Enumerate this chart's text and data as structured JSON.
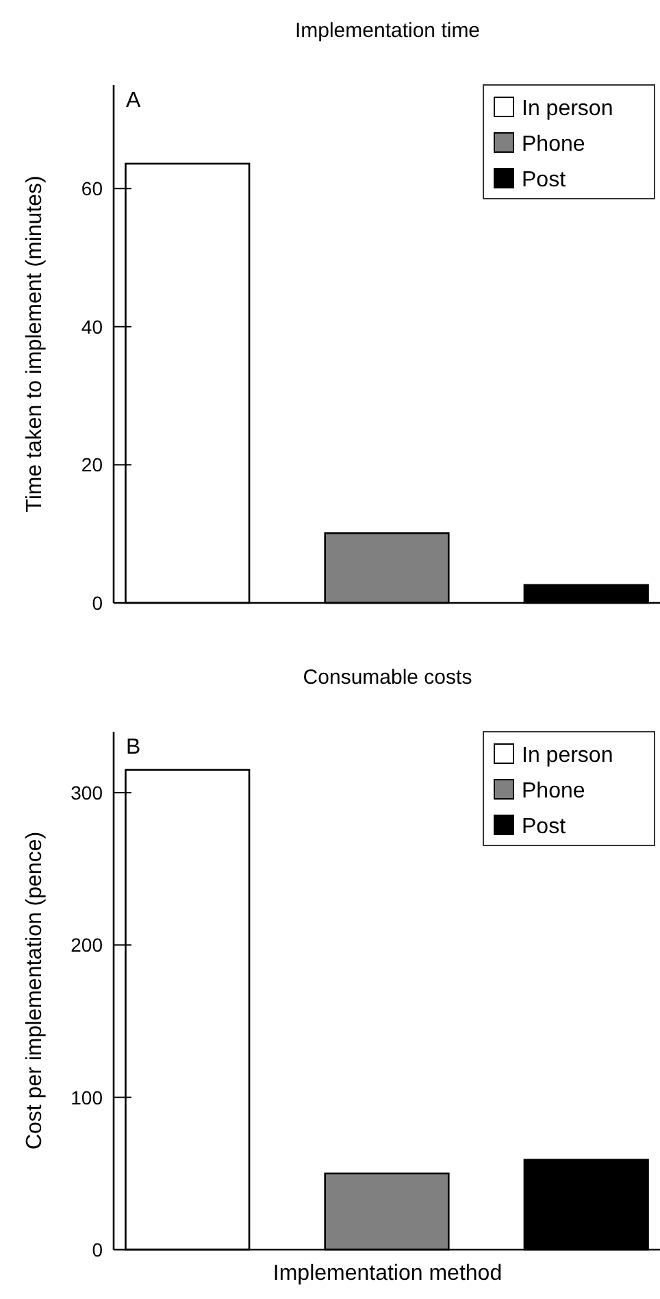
{
  "chart_data": [
    {
      "type": "bar",
      "title": "Implementation time",
      "ylabel": "Time taken to implement (minutes)",
      "annotations": [
        "A"
      ],
      "categories": [
        null,
        null,
        null
      ],
      "stacked": true,
      "legend": "top right",
      "ylim": [
        0,
        75
      ],
      "yticks": [
        0,
        20,
        40,
        60
      ],
      "series": [
        {
          "name": "In person",
          "color": "#ffffff",
          "values": [
            63.6,
            null,
            null
          ]
        },
        {
          "name": "Phone",
          "color": "#808080",
          "values": [
            null,
            10.1,
            null
          ]
        },
        {
          "name": "Post",
          "color": "#000000",
          "values": [
            null,
            null,
            2.6
          ]
        }
      ]
    },
    {
      "type": "bar",
      "title": "Consumable costs",
      "ylabel": "Cost per implementation (pence)",
      "xlabel": "Implementation method",
      "annotations": [
        "B"
      ],
      "categories": [
        null,
        null,
        null
      ],
      "stacked": true,
      "legend": "top right",
      "ylim": [
        0,
        340
      ],
      "yticks": [
        0,
        100,
        200,
        300
      ],
      "series": [
        {
          "name": "In person",
          "color": "#ffffff",
          "values": [
            315,
            null,
            null
          ]
        },
        {
          "name": "Phone",
          "color": "#808080",
          "values": [
            null,
            50,
            null
          ]
        },
        {
          "name": "Post",
          "color": "#000000",
          "values": [
            null,
            null,
            59
          ]
        }
      ]
    }
  ]
}
